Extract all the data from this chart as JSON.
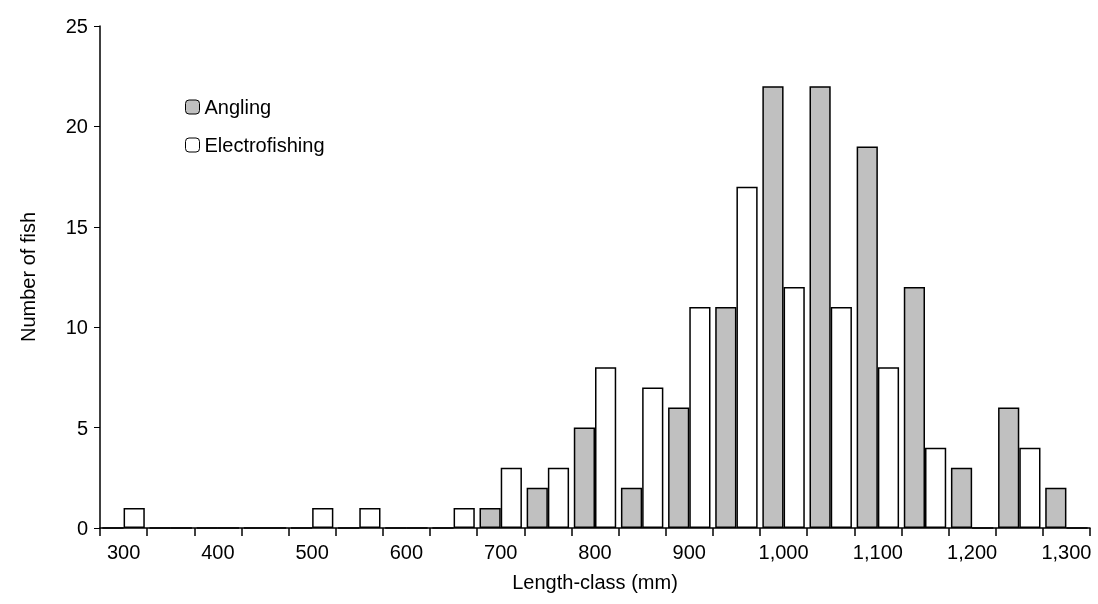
{
  "chart_data": {
    "type": "bar",
    "xlabel": "Length-class (mm)",
    "ylabel": "Number of fish",
    "categories": [
      "300",
      null,
      "400",
      null,
      "500",
      null,
      "600",
      null,
      "700",
      null,
      "800",
      null,
      "900",
      null,
      "1,000",
      null,
      "1,100",
      null,
      "1,200",
      null,
      "1,300"
    ],
    "series": [
      {
        "name": "Angling",
        "color": "#c0c0c0",
        "values": [
          0,
          0,
          0,
          0,
          0,
          0,
          0,
          0,
          1,
          2,
          5,
          2,
          6,
          11,
          22,
          22,
          19,
          12,
          3,
          6,
          2
        ]
      },
      {
        "name": "Electrofishing",
        "color": "#ffffff",
        "values": [
          1,
          0,
          0,
          0,
          1,
          1,
          0,
          1,
          3,
          3,
          8,
          7,
          11,
          17,
          12,
          11,
          8,
          4,
          0,
          4,
          0
        ]
      }
    ],
    "ylim": [
      0,
      25
    ],
    "yticks": [
      0,
      5,
      10,
      15,
      20,
      25
    ],
    "grid": false,
    "legend": "top left"
  }
}
